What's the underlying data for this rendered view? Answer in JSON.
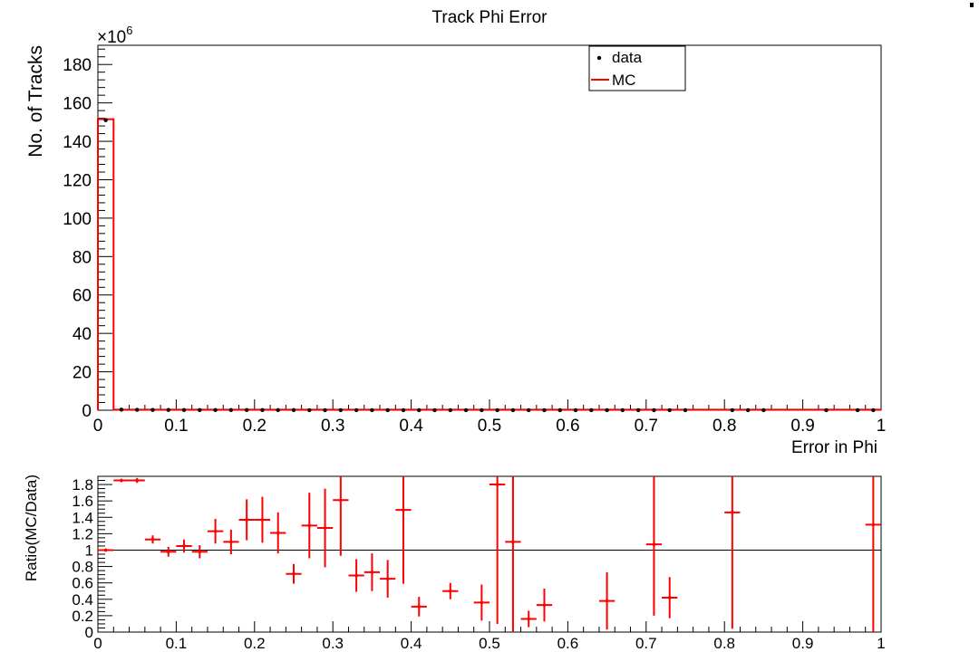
{
  "chart_data": [
    {
      "type": "histogram",
      "title": "Track Phi Error",
      "xlabel": "Error in Phi",
      "ylabel": "No. of Tracks",
      "y_multiplier_label": "×10",
      "y_multiplier_exponent": "6",
      "xlim": [
        0,
        1
      ],
      "ylim": [
        0,
        190
      ],
      "x_ticks": [
        "0",
        "0.1",
        "0.2",
        "0.3",
        "0.4",
        "0.5",
        "0.6",
        "0.7",
        "0.8",
        "0.9",
        "1"
      ],
      "y_ticks": [
        "0",
        "20",
        "40",
        "60",
        "80",
        "100",
        "120",
        "140",
        "160",
        "180"
      ],
      "grid": false,
      "legend": {
        "position": "top-right",
        "entries": [
          {
            "label": "data",
            "marker": "dot",
            "color": "#000000"
          },
          {
            "label": "MC",
            "marker": "line",
            "color": "#ff0000"
          }
        ]
      },
      "series": [
        {
          "name": "data",
          "style": "points",
          "color": "#000000",
          "x": [
            0.01,
            0.03,
            0.05,
            0.07,
            0.09,
            0.11,
            0.13,
            0.15,
            0.17,
            0.19,
            0.21,
            0.23,
            0.25,
            0.27,
            0.29,
            0.31,
            0.33,
            0.35,
            0.37,
            0.39,
            0.41,
            0.43,
            0.45,
            0.47,
            0.49,
            0.51,
            0.53,
            0.55,
            0.57,
            0.59,
            0.61,
            0.63,
            0.65,
            0.67,
            0.69,
            0.71,
            0.73,
            0.75,
            0.81,
            0.83,
            0.85,
            0.93,
            0.97,
            0.99
          ],
          "y": [
            151,
            0.3,
            0.2,
            0.15,
            0.12,
            0.1,
            0.1,
            0.08,
            0.08,
            0.07,
            0.07,
            0.06,
            0.06,
            0.05,
            0.05,
            0.05,
            0.04,
            0.04,
            0.04,
            0.04,
            0.03,
            0.03,
            0.03,
            0.03,
            0.03,
            0.03,
            0.03,
            0.02,
            0.02,
            0.02,
            0.02,
            0.02,
            0.02,
            0.02,
            0.02,
            0.02,
            0.02,
            0.02,
            0.01,
            0.01,
            0.01,
            0.01,
            0.01,
            0.01
          ]
        },
        {
          "name": "MC",
          "style": "step",
          "color": "#ff0000",
          "bin_edges": [
            0,
            0.02,
            1
          ],
          "values": [
            151.5,
            0.3
          ]
        }
      ]
    },
    {
      "type": "scatter",
      "title": "",
      "xlabel": "",
      "ylabel": "Ratio(MC/Data)",
      "xlim": [
        0,
        1
      ],
      "ylim": [
        0,
        1.9
      ],
      "x_ticks": [
        "0",
        "0.1",
        "0.2",
        "0.3",
        "0.4",
        "0.5",
        "0.6",
        "0.7",
        "0.8",
        "0.9",
        "1"
      ],
      "y_ticks": [
        "0",
        "0.2",
        "0.4",
        "0.6",
        "0.8",
        "1",
        "1.2",
        "1.4",
        "1.6",
        "1.8"
      ],
      "reference_line": 1,
      "grid": false,
      "series": [
        {
          "name": "",
          "style": "error-bars",
          "color": "#ff0000",
          "x_halfwidth": 0.01,
          "points": [
            {
              "x": 0.01,
              "y": 1.0,
              "err": 0.01
            },
            {
              "x": 0.03,
              "y": 1.85,
              "err": 0.02
            },
            {
              "x": 0.05,
              "y": 1.85,
              "err": 0.03
            },
            {
              "x": 0.07,
              "y": 1.13,
              "err": 0.05
            },
            {
              "x": 0.09,
              "y": 0.98,
              "err": 0.06
            },
            {
              "x": 0.11,
              "y": 1.05,
              "err": 0.08
            },
            {
              "x": 0.13,
              "y": 0.98,
              "err": 0.08
            },
            {
              "x": 0.15,
              "y": 1.23,
              "err": 0.15
            },
            {
              "x": 0.17,
              "y": 1.1,
              "err": 0.15
            },
            {
              "x": 0.19,
              "y": 1.37,
              "err": 0.25
            },
            {
              "x": 0.21,
              "y": 1.37,
              "err": 0.28
            },
            {
              "x": 0.23,
              "y": 1.21,
              "err": 0.25
            },
            {
              "x": 0.25,
              "y": 0.71,
              "err": 0.12
            },
            {
              "x": 0.27,
              "y": 1.3,
              "err": 0.4
            },
            {
              "x": 0.29,
              "y": 1.27,
              "err": 0.48
            },
            {
              "x": 0.31,
              "y": 1.61,
              "err": 0.68
            },
            {
              "x": 0.33,
              "y": 0.69,
              "err": 0.2
            },
            {
              "x": 0.35,
              "y": 0.73,
              "err": 0.23
            },
            {
              "x": 0.37,
              "y": 0.65,
              "err": 0.23
            },
            {
              "x": 0.39,
              "y": 1.49,
              "err": 0.9
            },
            {
              "x": 0.41,
              "y": 0.31,
              "err": 0.12
            },
            {
              "x": 0.45,
              "y": 0.5,
              "err": 0.1
            },
            {
              "x": 0.49,
              "y": 0.36,
              "err": 0.22
            },
            {
              "x": 0.51,
              "y": 1.8,
              "err": 1.7
            },
            {
              "x": 0.53,
              "y": 1.1,
              "err": 1.2
            },
            {
              "x": 0.55,
              "y": 0.16,
              "err": 0.1
            },
            {
              "x": 0.57,
              "y": 0.33,
              "err": 0.2
            },
            {
              "x": 0.65,
              "y": 0.38,
              "err": 0.35
            },
            {
              "x": 0.71,
              "y": 1.07,
              "err": 0.87
            },
            {
              "x": 0.73,
              "y": 0.42,
              "err": 0.25
            },
            {
              "x": 0.81,
              "y": 1.46,
              "err": 1.42
            },
            {
              "x": 0.99,
              "y": 1.31,
              "err": 1.31
            }
          ]
        }
      ]
    }
  ]
}
